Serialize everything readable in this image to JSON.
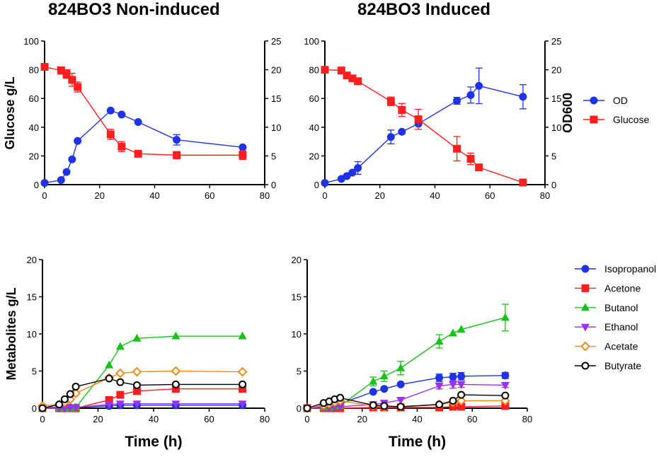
{
  "colors": {
    "od": "#1f33e6",
    "glucose": "#ff1f1f",
    "isopropanol": "#1f33e6",
    "acetone": "#ff1f1f",
    "butanol": "#19c219",
    "ethanol": "#9933ee",
    "acetate": "#f08a1a",
    "butyrate": "#000000"
  },
  "chart_data": [
    {
      "type": "line",
      "title": "824BO3 Non-induced",
      "xlabel": "",
      "ylabel": "Glucose g/L",
      "y2label": "",
      "xlim": [
        0,
        80
      ],
      "xticks": [
        0,
        20,
        40,
        60,
        80
      ],
      "ylim": [
        0,
        100
      ],
      "yticks": [
        0,
        20,
        40,
        60,
        80,
        100
      ],
      "y2lim": [
        0,
        25
      ],
      "y2ticks": [
        0,
        5,
        10,
        15,
        20,
        25
      ],
      "series": [
        {
          "name": "OD",
          "axis": "right",
          "color_key": "od",
          "marker": "circle",
          "x": [
            0,
            6,
            8,
            10,
            12,
            24,
            28,
            34,
            48,
            72
          ],
          "y": [
            0.3,
            0.8,
            2.2,
            4.4,
            7.6,
            12.9,
            12.2,
            10.9,
            7.8,
            6.5
          ],
          "err": [
            0,
            0,
            0,
            0,
            0,
            0,
            0,
            0,
            0.9,
            0
          ]
        },
        {
          "name": "Glucose",
          "axis": "left",
          "color_key": "glucose",
          "marker": "square",
          "x": [
            0,
            6,
            8,
            10,
            12,
            24,
            28,
            34,
            48,
            72
          ],
          "y": [
            82,
            79.5,
            77,
            73,
            68,
            35,
            26.5,
            21.5,
            20.5,
            20.5
          ],
          "err": [
            0,
            2.5,
            3,
            4.5,
            3.5,
            3.5,
            3.5,
            2,
            2.5,
            3
          ]
        }
      ]
    },
    {
      "type": "line",
      "title": "824BO3 Induced",
      "xlabel": "",
      "ylabel": "",
      "y2label": "OD600",
      "xlim": [
        0,
        80
      ],
      "xticks": [
        0,
        20,
        40,
        60,
        80
      ],
      "ylim": [
        0,
        100
      ],
      "yticks": [
        0,
        20,
        40,
        60,
        80,
        100
      ],
      "y2lim": [
        0,
        25
      ],
      "y2ticks": [
        0,
        5,
        10,
        15,
        20,
        25
      ],
      "legend": [
        "OD",
        "Glucose"
      ],
      "series": [
        {
          "name": "OD",
          "axis": "right",
          "color_key": "od",
          "marker": "circle",
          "x": [
            0,
            6,
            8,
            10,
            12,
            24,
            28,
            34,
            48,
            53,
            56,
            72
          ],
          "y": [
            0.3,
            1,
            1.5,
            2.1,
            2.9,
            8.3,
            9.2,
            10.6,
            14.6,
            15.6,
            17.2,
            15.3
          ],
          "err": [
            0,
            0,
            0,
            0,
            1.1,
            1.2,
            0,
            0,
            0.6,
            1.4,
            3.1,
            2.1
          ]
        },
        {
          "name": "Glucose",
          "axis": "left",
          "color_key": "glucose",
          "marker": "square",
          "x": [
            0,
            6,
            8,
            10,
            12,
            24,
            28,
            34,
            48,
            53,
            56,
            72
          ],
          "y": [
            80,
            79.5,
            76,
            74,
            72,
            58,
            52,
            45.5,
            25,
            18,
            12,
            1.5
          ],
          "err": [
            0,
            0,
            0,
            0,
            0,
            3,
            4.5,
            7,
            8.5,
            4,
            0,
            0
          ]
        }
      ]
    },
    {
      "type": "line",
      "title": "",
      "xlabel": "Time (h)",
      "ylabel": "Metabolites g/L",
      "xlim": [
        0,
        80
      ],
      "xticks": [
        0,
        20,
        40,
        60,
        80
      ],
      "ylim": [
        0,
        20
      ],
      "yticks": [
        0,
        5,
        10,
        15,
        20
      ],
      "series": [
        {
          "name": "Isopropanol",
          "color_key": "isopropanol",
          "marker": "circle",
          "x": [
            0,
            6,
            8,
            10,
            12,
            24,
            28,
            34,
            48,
            72
          ],
          "y": [
            0.1,
            0.1,
            0.1,
            0.1,
            0.1,
            0.3,
            0.4,
            0.4,
            0.4,
            0.4
          ]
        },
        {
          "name": "Acetone",
          "color_key": "acetone",
          "marker": "square",
          "x": [
            0,
            6,
            8,
            10,
            12,
            24,
            28,
            34,
            48,
            72
          ],
          "y": [
            0,
            0,
            0,
            0,
            0,
            1.1,
            1.8,
            2.3,
            2.6,
            2.6
          ]
        },
        {
          "name": "Butanol",
          "color_key": "butanol",
          "marker": "triangle-up",
          "x": [
            0,
            6,
            8,
            10,
            12,
            24,
            28,
            34,
            48,
            72
          ],
          "y": [
            0,
            0,
            0,
            0,
            0.1,
            5.8,
            8.3,
            9.4,
            9.7,
            9.7
          ]
        },
        {
          "name": "Ethanol",
          "color_key": "ethanol",
          "marker": "triangle-down",
          "x": [
            0,
            6,
            8,
            10,
            12,
            24,
            28,
            34,
            48,
            72
          ],
          "y": [
            0,
            0,
            0,
            0.1,
            0.1,
            0.5,
            0.6,
            0.6,
            0.6,
            0.6
          ]
        },
        {
          "name": "Acetate",
          "color_key": "acetate",
          "marker": "diamond-open",
          "x": [
            0,
            6,
            8,
            10,
            12,
            24,
            28,
            34,
            48,
            72
          ],
          "y": [
            0.3,
            0.5,
            0.8,
            1.2,
            2,
            4.1,
            4.7,
            4.9,
            5,
            4.9
          ]
        },
        {
          "name": "Butyrate",
          "color_key": "butyrate",
          "marker": "circle-open",
          "x": [
            0,
            6,
            8,
            10,
            12,
            24,
            28,
            34,
            48,
            72
          ],
          "y": [
            0,
            0.5,
            1.2,
            1.9,
            2.9,
            4,
            3.5,
            3.1,
            3.2,
            3.2
          ]
        }
      ]
    },
    {
      "type": "line",
      "title": "",
      "xlabel": "Time (h)",
      "ylabel": "",
      "xlim": [
        0,
        80
      ],
      "xticks": [
        0,
        20,
        40,
        60,
        80
      ],
      "ylim": [
        0,
        20
      ],
      "yticks": [
        0,
        5,
        10,
        15,
        20
      ],
      "legend": [
        "Isopropanol",
        "Acetone",
        "Butanol",
        "Ethanol",
        "Acetate",
        "Butyrate"
      ],
      "series": [
        {
          "name": "Isopropanol",
          "color_key": "isopropanol",
          "marker": "circle",
          "x": [
            0,
            6,
            8,
            10,
            12,
            24,
            28,
            34,
            48,
            53,
            56,
            72
          ],
          "y": [
            0,
            0.3,
            0.4,
            0.5,
            0.6,
            2.2,
            2.6,
            3.2,
            4.1,
            4.2,
            4.3,
            4.4
          ],
          "err": [
            0,
            0,
            0,
            0,
            0,
            0,
            0,
            0,
            0.5,
            0.5,
            0.5,
            0.4
          ]
        },
        {
          "name": "Acetone",
          "color_key": "acetone",
          "marker": "square",
          "x": [
            0,
            6,
            8,
            10,
            12,
            24,
            28,
            34,
            48,
            53,
            56,
            72
          ],
          "y": [
            0,
            0,
            0,
            0,
            0,
            0.1,
            0.1,
            0.1,
            0.1,
            0.2,
            0.2,
            0.3
          ]
        },
        {
          "name": "Butanol",
          "color_key": "butanol",
          "marker": "triangle-up",
          "x": [
            0,
            6,
            8,
            10,
            12,
            24,
            28,
            34,
            48,
            53,
            56,
            72
          ],
          "y": [
            0,
            0.1,
            0.1,
            0.2,
            0.3,
            3.6,
            4.3,
            5.4,
            9,
            10.1,
            10.6,
            12.2
          ],
          "err": [
            0,
            0,
            0,
            0,
            0,
            0.6,
            0.7,
            0.9,
            0.9,
            0,
            0,
            1.8
          ]
        },
        {
          "name": "Ethanol",
          "color_key": "ethanol",
          "marker": "triangle-down",
          "x": [
            0,
            6,
            8,
            10,
            12,
            24,
            28,
            34,
            48,
            53,
            56,
            72
          ],
          "y": [
            0,
            0.1,
            0.1,
            0.2,
            0.2,
            0.5,
            0.7,
            1.1,
            3,
            3.2,
            3.2,
            3.1
          ],
          "err": [
            0,
            0,
            0,
            0,
            0,
            0,
            0,
            0,
            0.4,
            0.5,
            0.4,
            0.3
          ]
        },
        {
          "name": "Acetate",
          "color_key": "acetate",
          "marker": "diamond-open",
          "x": [
            0,
            6,
            8,
            10,
            12,
            24,
            28,
            34,
            48,
            53,
            56,
            72
          ],
          "y": [
            0,
            0.4,
            0.6,
            0.8,
            1,
            0.3,
            0.2,
            0.2,
            0.5,
            0.8,
            1,
            1
          ]
        },
        {
          "name": "Butyrate",
          "color_key": "butyrate",
          "marker": "circle-open",
          "x": [
            0,
            6,
            8,
            10,
            12,
            24,
            28,
            34,
            48,
            53,
            56,
            72
          ],
          "y": [
            0,
            0.7,
            0.9,
            1.2,
            1.4,
            0.4,
            0.3,
            0.2,
            0.5,
            1,
            1.8,
            1.7
          ]
        }
      ]
    }
  ]
}
